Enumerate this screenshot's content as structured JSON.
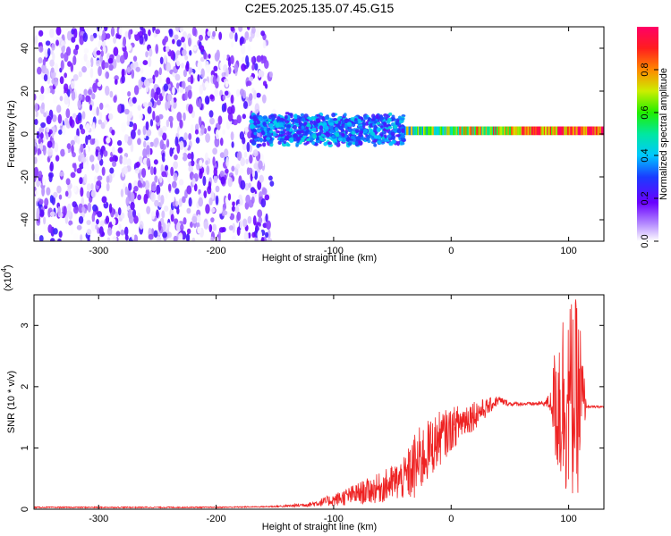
{
  "title": "C2E5.2025.135.07.45.G15",
  "chart_data": [
    {
      "type": "heatmap",
      "xlabel": "Height of straight line (km)",
      "ylabel": "Frequency (Hz)",
      "xlim": [
        -355,
        130
      ],
      "ylim": [
        -50,
        50
      ],
      "x_ticks": [
        "-300",
        "-200",
        "-100",
        "0",
        "100"
      ],
      "y_ticks": [
        "-40",
        "-20",
        "0",
        "20",
        "40"
      ],
      "colorbar": {
        "label": "Normalized spectral amplitude",
        "range": [
          0,
          1
        ],
        "ticks": [
          "0.0",
          "0.2",
          "0.4",
          "0.6",
          "0.8"
        ]
      },
      "regions": [
        {
          "x_range": [
            -355,
            -150
          ],
          "freq_range": [
            -50,
            50
          ],
          "amplitude_range": [
            0.0,
            0.25
          ]
        },
        {
          "x_range": [
            -170,
            -40
          ],
          "freq_center": 2,
          "freq_half_width": 8,
          "amplitude_range": [
            0.2,
            0.45
          ]
        },
        {
          "x_range": [
            -40,
            130
          ],
          "freq_center": 1.5,
          "freq_half_width": 2,
          "amplitude_range": [
            0.3,
            1.0
          ]
        }
      ]
    },
    {
      "type": "line",
      "xlabel": "Height of straight line (km)",
      "ylabel": "SNR (10 * v/v)",
      "y_scale_label": "(x10",
      "y_scale_exponent": "4",
      "xlim": [
        -355,
        130
      ],
      "ylim": [
        0,
        3.5
      ],
      "x_ticks": [
        "-300",
        "-200",
        "-100",
        "0",
        "100"
      ],
      "y_ticks": [
        "0",
        "1",
        "2",
        "3"
      ],
      "color": "#ee2222",
      "series": [
        {
          "x": [
            -355,
            -300,
            -250,
            -200,
            -160,
            -140,
            -120,
            -100,
            -80,
            -60,
            -40,
            -30,
            -20,
            -10,
            0,
            10,
            20,
            30,
            40,
            50,
            60,
            70,
            80,
            85,
            90,
            95,
            100,
            105,
            110,
            115,
            120,
            130
          ],
          "values": [
            0.03,
            0.03,
            0.03,
            0.03,
            0.04,
            0.05,
            0.08,
            0.15,
            0.25,
            0.35,
            0.5,
            0.7,
            0.95,
            1.15,
            1.3,
            1.45,
            1.55,
            1.65,
            1.78,
            1.72,
            1.72,
            1.72,
            1.73,
            1.75,
            1.78,
            1.8,
            1.8,
            1.8,
            1.75,
            1.68,
            1.67,
            1.67
          ],
          "noise_amplitude": [
            0.01,
            0.01,
            0.01,
            0.01,
            0.01,
            0.02,
            0.04,
            0.1,
            0.18,
            0.25,
            0.35,
            0.6,
            0.5,
            0.45,
            0.35,
            0.3,
            0.25,
            0.15,
            0.08,
            0.04,
            0.03,
            0.03,
            0.05,
            0.2,
            1.3,
            1.6,
            1.6,
            1.7,
            1.4,
            0.03,
            0.02,
            0.02
          ]
        }
      ]
    }
  ]
}
